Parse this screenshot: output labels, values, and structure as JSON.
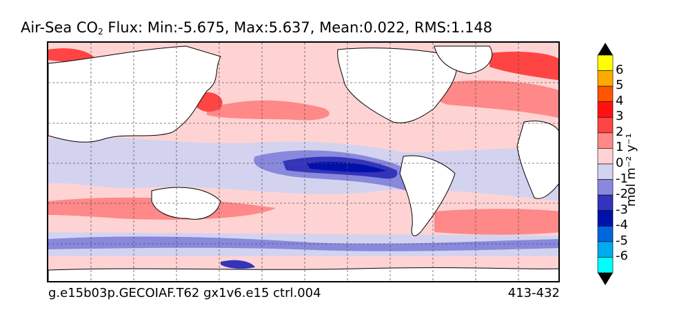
{
  "title": {
    "prefix": "Air-Sea CO",
    "subscript": "2",
    "suffix": " Flux: Min:-5.675, Max:5.637, Mean:0.022, RMS:1.148"
  },
  "footer": {
    "case_name": "g.e15b03p.GECOIAF.T62 gx1v6.e15 ctrl.004",
    "years": "413-432"
  },
  "colorbar": {
    "unit_label": "mol m⁻² y⁻¹",
    "levels": [
      {
        "label": "6",
        "color": "#ffff00"
      },
      {
        "label": "5",
        "color": "#ffaa00"
      },
      {
        "label": "4",
        "color": "#ff5500"
      },
      {
        "label": "3",
        "color": "#ff1111"
      },
      {
        "label": "2",
        "color": "#ff4444"
      },
      {
        "label": "1",
        "color": "#ff8888"
      },
      {
        "label": "0",
        "color": "#ffd3d3"
      },
      {
        "label": "-1",
        "color": "#d3d3f0"
      },
      {
        "label": "-2",
        "color": "#8888dd"
      },
      {
        "label": "-3",
        "color": "#3333bb"
      },
      {
        "label": "-4",
        "color": "#0011aa"
      },
      {
        "label": "-5",
        "color": "#0066dd"
      },
      {
        "label": "-6",
        "color": "#00aaee"
      }
    ],
    "over_color": "#000000",
    "under_color": "#000000",
    "bottom_color": "#00ffff"
  },
  "map_colors": {
    "land": "#ffffff",
    "coast": "#000000",
    "grid": "#555555"
  }
}
